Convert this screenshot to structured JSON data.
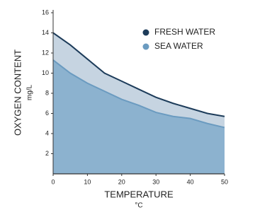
{
  "chart_data": {
    "type": "area",
    "x_label": "TEMPERATURE",
    "x_unit": "°C",
    "y_label": "OXYGEN CONTENT",
    "y_unit": "mg/L",
    "x": [
      0,
      5,
      10,
      15,
      20,
      25,
      30,
      35,
      40,
      45,
      50
    ],
    "series": [
      {
        "name": "FRESH WATER",
        "color": "#1d3c5a",
        "fill": "#c6d4e1",
        "values": [
          14.0,
          12.8,
          11.4,
          10.0,
          9.2,
          8.4,
          7.6,
          7.0,
          6.5,
          6.0,
          5.7
        ]
      },
      {
        "name": "SEA WATER",
        "color": "#6b9bc0",
        "fill": "#8cb2cf",
        "values": [
          11.3,
          10.0,
          9.0,
          8.2,
          7.4,
          6.8,
          6.1,
          5.7,
          5.5,
          5.0,
          4.6
        ]
      }
    ],
    "xlim": [
      0,
      50
    ],
    "xticks": [
      0,
      10,
      20,
      30,
      40,
      50
    ],
    "ylim": [
      0,
      16
    ],
    "yticks": [
      2,
      4,
      6,
      8,
      10,
      12,
      14,
      16
    ],
    "legend": "upper right"
  }
}
